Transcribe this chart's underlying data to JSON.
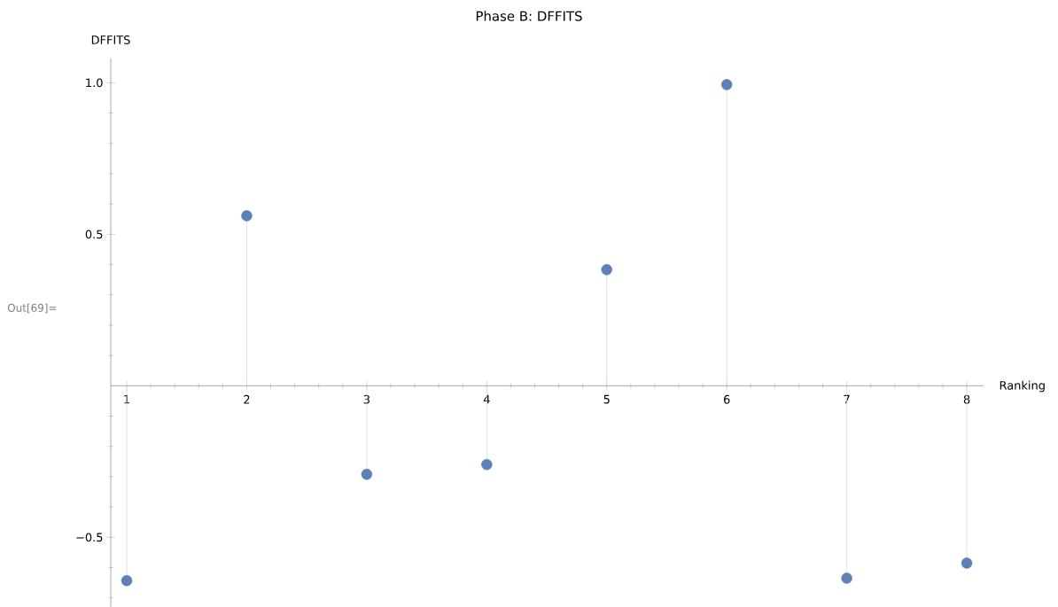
{
  "chart_data": {
    "type": "lollipop",
    "title": "Phase B: DFFITS",
    "xlabel": "Ranking",
    "ylabel": "DFFITS",
    "annotations": [
      "Out[69]="
    ],
    "x": [
      1,
      2,
      3,
      4,
      5,
      6,
      7,
      8
    ],
    "values": [
      -0.643,
      0.561,
      -0.292,
      -0.26,
      0.383,
      0.994,
      -0.635,
      -0.585
    ],
    "color": "#5e81b5",
    "marker": "circle",
    "xlim": [
      0.867,
      8.14
    ],
    "ylim": [
      -0.73,
      1.08
    ],
    "xticks": [
      1,
      2,
      3,
      4,
      5,
      6,
      7,
      8,
      {
        "value": 1.2,
        "label": null
      },
      {
        "value": 1.4,
        "label": null
      },
      {
        "value": 1.6,
        "label": null
      },
      {
        "value": 1.8,
        "label": null
      },
      {
        "value": 2.2,
        "label": null
      },
      {
        "value": 2.4,
        "label": null
      },
      {
        "value": 2.6,
        "label": null
      },
      {
        "value": 2.8,
        "label": null
      },
      {
        "value": 3.2,
        "label": null
      },
      {
        "value": 3.4,
        "label": null
      },
      {
        "value": 3.6,
        "label": null
      },
      {
        "value": 3.8,
        "label": null
      },
      {
        "value": 4.2,
        "label": null
      },
      {
        "value": 4.4,
        "label": null
      },
      {
        "value": 4.6,
        "label": null
      },
      {
        "value": 4.8,
        "label": null
      },
      {
        "value": 5.2,
        "label": null
      },
      {
        "value": 5.4,
        "label": null
      },
      {
        "value": 5.6,
        "label": null
      },
      {
        "value": 5.8,
        "label": null
      },
      {
        "value": 6.2,
        "label": null
      },
      {
        "value": 6.4,
        "label": null
      },
      {
        "value": 6.6,
        "label": null
      },
      {
        "value": 6.8,
        "label": null
      },
      {
        "value": 7.2,
        "label": null
      },
      {
        "value": 7.4,
        "label": null
      },
      {
        "value": 7.6,
        "label": null
      },
      {
        "value": 7.8,
        "label": null
      }
    ],
    "yticks": [
      {
        "value": -0.5,
        "label": "−0.5"
      },
      0.5,
      {
        "value": 1,
        "label": "1.0"
      },
      {
        "value": -0.7,
        "label": null
      },
      {
        "value": -0.6,
        "label": null
      },
      {
        "value": -0.4,
        "label": null
      },
      {
        "value": -0.3,
        "label": null
      },
      {
        "value": -0.2,
        "label": null
      },
      {
        "value": -0.1,
        "label": null
      },
      {
        "value": 0.1,
        "label": null
      },
      {
        "value": 0.2,
        "label": null
      },
      {
        "value": 0.3,
        "label": null
      },
      {
        "value": 0.4,
        "label": null
      },
      {
        "value": 0.6,
        "label": null
      },
      {
        "value": 0.7,
        "label": null
      },
      {
        "value": 0.8,
        "label": null
      },
      {
        "value": 0.9,
        "label": null
      }
    ]
  }
}
